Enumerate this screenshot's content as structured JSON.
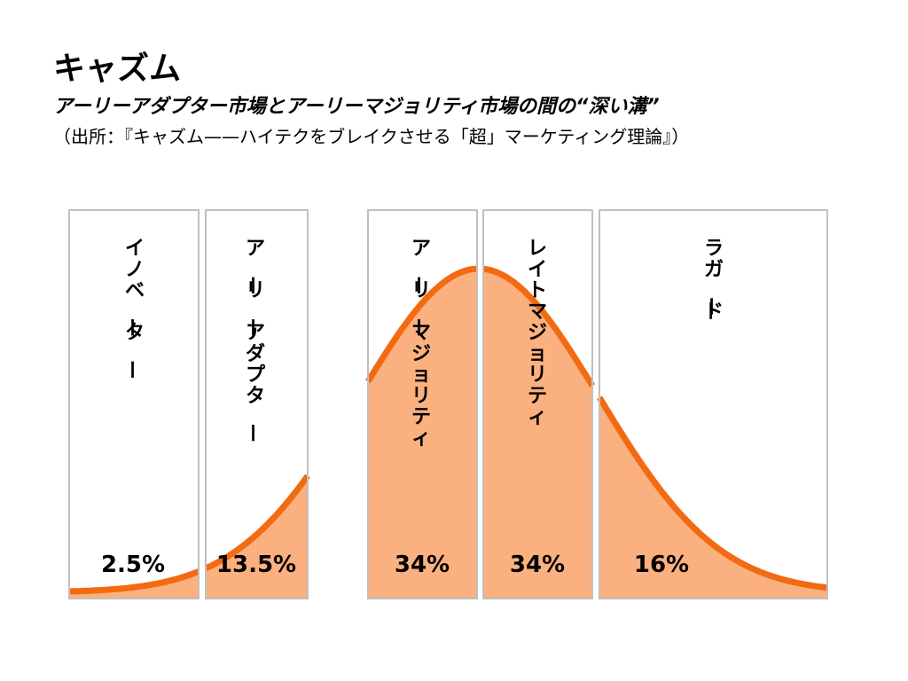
{
  "header": {
    "title": "キャズム",
    "subtitle": "アーリーアダプター市場とアーリーマジョリティ市場の間の“深い溝”",
    "source": "（出所：『キャズム——ハイテクをブレイクさせる「超」マーケティング理論』）"
  },
  "colors": {
    "curve": "#f26a12",
    "fill": "#fbb07f",
    "panel_border": "#c0c0c0",
    "panel_bg": "#ffffff"
  },
  "chart_data": {
    "type": "area",
    "segments": [
      {
        "label": "イノベーター",
        "percent": "2.5%"
      },
      {
        "label": "アーリーアダプター",
        "percent": "13.5%"
      },
      {
        "label": "アーリーマジョリティ",
        "percent": "34%"
      },
      {
        "label": "レイトマジョリティ",
        "percent": "34%"
      },
      {
        "label": "ラガード",
        "percent": "16%"
      }
    ]
  }
}
